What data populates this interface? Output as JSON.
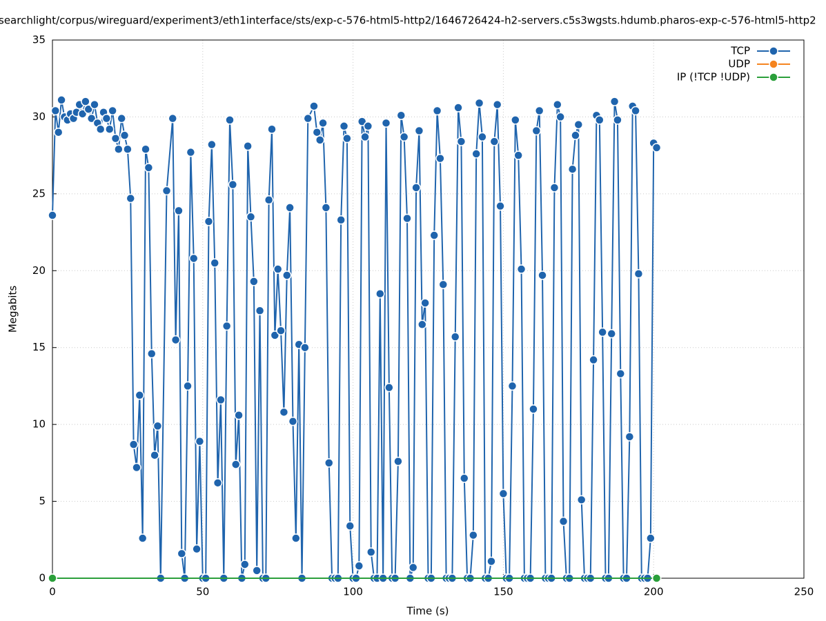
{
  "chart_data": {
    "type": "line",
    "title": "searchlight/corpus/wireguard/experiment3/eth1interface/sts/exp-c-576-html5-http2/1646726424-h2-servers.c5s3wgsts.hdumb.pharos-exp-c-576-html5-http2",
    "x_label": "Time (s)",
    "y_label": "Megabits",
    "xlim": [
      0,
      250
    ],
    "xticks": [
      0,
      50,
      100,
      150,
      200,
      250
    ],
    "ylim": [
      0,
      35
    ],
    "yticks": [
      0,
      5,
      10,
      15,
      20,
      25,
      30,
      35
    ],
    "grid": true,
    "legend": "top-right",
    "series": [
      {
        "name": "TCP",
        "color": "#1f64ad",
        "x": [
          0,
          1,
          2,
          3,
          4,
          5,
          6,
          7,
          8,
          9,
          10,
          11,
          12,
          13,
          14,
          15,
          16,
          17,
          18,
          19,
          20,
          21,
          22,
          23,
          24,
          25,
          26,
          27,
          28,
          29,
          30,
          31,
          32,
          33,
          34,
          35,
          36,
          38,
          40,
          41,
          42,
          43,
          44,
          45,
          46,
          47,
          48,
          49,
          50,
          51,
          52,
          53,
          54,
          55,
          56,
          57,
          58,
          59,
          60,
          61,
          62,
          63,
          64,
          65,
          66,
          67,
          68,
          69,
          70,
          71,
          72,
          73,
          74,
          75,
          76,
          77,
          78,
          79,
          80,
          81,
          82,
          83,
          84,
          85,
          87,
          88,
          89,
          90,
          91,
          92,
          93,
          94,
          95,
          96,
          97,
          98,
          99,
          100,
          101,
          102,
          103,
          104,
          105,
          106,
          107,
          108,
          109,
          110,
          111,
          112,
          113,
          114,
          115,
          116,
          117,
          118,
          119,
          120,
          121,
          122,
          123,
          124,
          125,
          126,
          127,
          128,
          129,
          130,
          131,
          132,
          133,
          134,
          135,
          136,
          137,
          138,
          139,
          140,
          141,
          142,
          143,
          144,
          145,
          146,
          147,
          148,
          149,
          150,
          151,
          152,
          153,
          154,
          155,
          156,
          157,
          158,
          159,
          160,
          161,
          162,
          163,
          164,
          165,
          166,
          167,
          168,
          169,
          170,
          171,
          172,
          173,
          174,
          175,
          176,
          177,
          178,
          179,
          180,
          181,
          182,
          183,
          184,
          185,
          186,
          187,
          188,
          189,
          190,
          191,
          192,
          193,
          194,
          195,
          196,
          197,
          198,
          199,
          200,
          201
        ],
        "values": [
          23.6,
          30.4,
          29.0,
          31.1,
          30.0,
          29.8,
          30.2,
          29.9,
          30.3,
          30.8,
          30.2,
          31.0,
          30.5,
          29.9,
          30.8,
          29.6,
          29.2,
          30.3,
          29.9,
          29.2,
          30.4,
          28.6,
          27.9,
          29.9,
          28.8,
          27.9,
          24.7,
          8.7,
          7.2,
          11.9,
          2.6,
          27.9,
          26.7,
          14.6,
          8.0,
          9.9,
          0,
          25.2,
          29.9,
          15.5,
          23.9,
          1.6,
          0,
          12.5,
          27.7,
          20.8,
          1.9,
          8.9,
          0,
          0,
          23.2,
          28.2,
          20.5,
          6.2,
          11.6,
          0,
          16.4,
          29.8,
          25.6,
          7.4,
          10.6,
          0,
          0.9,
          28.1,
          23.5,
          19.3,
          0.5,
          17.4,
          0,
          0,
          24.6,
          29.2,
          15.8,
          20.1,
          16.1,
          10.8,
          19.7,
          24.1,
          10.2,
          2.6,
          15.2,
          0,
          15.0,
          29.9,
          30.7,
          29.0,
          28.5,
          29.6,
          24.1,
          7.5,
          0,
          0,
          0,
          23.3,
          29.4,
          28.6,
          3.4,
          0,
          0,
          0.8,
          29.7,
          28.7,
          29.4,
          1.7,
          0,
          0,
          18.5,
          0,
          29.6,
          12.4,
          0,
          0,
          7.6,
          30.1,
          28.7,
          23.4,
          0,
          0.7,
          25.4,
          29.1,
          16.5,
          17.9,
          0,
          0,
          22.3,
          30.4,
          27.3,
          19.1,
          0,
          0,
          0,
          15.7,
          30.6,
          28.4,
          6.5,
          0,
          0,
          2.8,
          27.6,
          30.9,
          28.7,
          0,
          0,
          1.1,
          28.4,
          30.8,
          24.2,
          5.5,
          0,
          0,
          12.5,
          29.8,
          27.5,
          20.1,
          0,
          0,
          0,
          11.0,
          29.1,
          30.4,
          19.7,
          0,
          0,
          0,
          25.4,
          30.8,
          30.0,
          3.7,
          0,
          0,
          26.6,
          28.8,
          29.5,
          5.1,
          0,
          0,
          0,
          14.2,
          30.1,
          29.8,
          16.0,
          0,
          0,
          15.9,
          31.0,
          29.8,
          13.3,
          0,
          0,
          9.2,
          30.7,
          30.4,
          19.8,
          0,
          0,
          0,
          2.6,
          28.3,
          28.0
        ]
      },
      {
        "name": "UDP",
        "color": "#f5841f",
        "x": [
          0,
          201
        ],
        "values": [
          0,
          0
        ]
      },
      {
        "name": "IP (!TCP  !UDP)",
        "color": "#2a9f3a",
        "x": [
          0,
          201
        ],
        "values": [
          0,
          0
        ]
      }
    ]
  }
}
